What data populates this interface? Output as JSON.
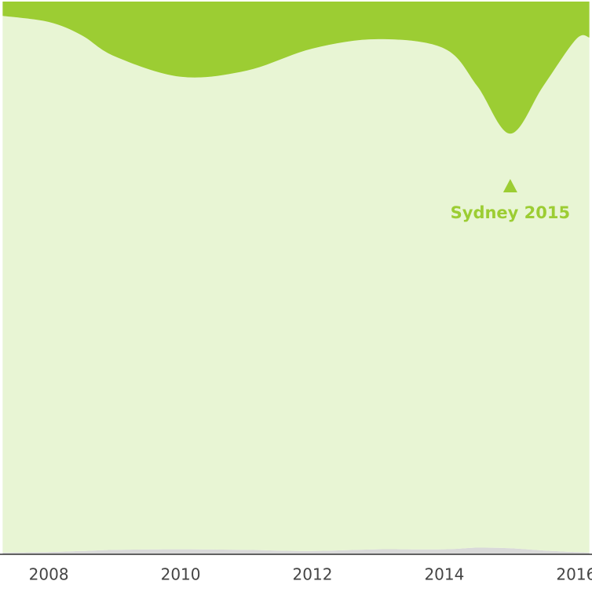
{
  "chart_data": {
    "type": "stacked_area",
    "x": [
      2007.3,
      2008,
      2008.5,
      2009,
      2010,
      2011,
      2012,
      2013,
      2014,
      2014.5,
      2015,
      2015.5,
      2016,
      2016.2
    ],
    "series": [
      {
        "color": "#d9d9d9",
        "values": [
          0.3,
          0.4,
          0.6,
          0.8,
          0.9,
          0.8,
          0.6,
          0.9,
          0.9,
          1.2,
          1.1,
          0.7,
          0.4,
          0.3
        ]
      },
      {
        "color": "#e8f5d4",
        "values": [
          97.1,
          95.9,
          93.3,
          89.3,
          85.5,
          86.7,
          90.9,
          92.3,
          90.6,
          83.5,
          75.0,
          84.0,
          92.8,
          93.2
        ]
      },
      {
        "color": "#9ccd33",
        "values": [
          2.6,
          3.7,
          6.1,
          9.9,
          13.6,
          12.5,
          8.5,
          6.8,
          8.5,
          15.3,
          23.9,
          15.3,
          6.8,
          6.5
        ]
      }
    ],
    "xlim": [
      2007.26,
      2016.24
    ],
    "ylim": [
      0,
      100
    ],
    "xticks": [
      2008,
      2010,
      2012,
      2014,
      2016
    ],
    "annotation": {
      "text": "Sydney 2015",
      "x": 2015,
      "color": "#9ccd33"
    }
  }
}
